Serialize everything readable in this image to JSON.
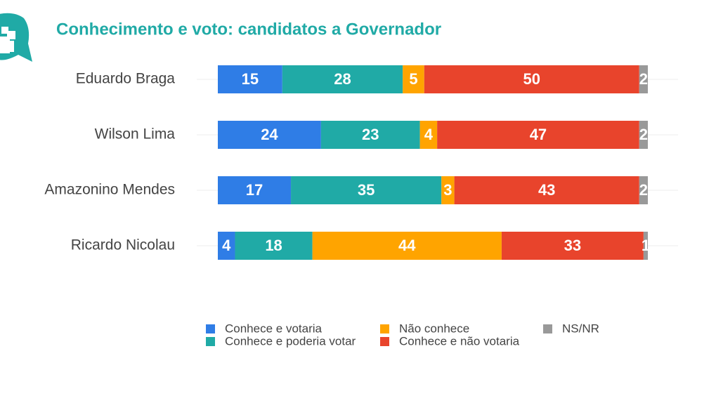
{
  "chart_data": {
    "type": "stacked-bar-horizontal",
    "title": "Conhecimento e voto: candidatos a Governador",
    "categories": [
      "Eduardo Braga",
      "Wilson Lima",
      "Amazonino Mendes",
      "Ricardo Nicolau"
    ],
    "series": [
      {
        "name": "Conhece e votaria",
        "color": "#2f7de6",
        "values": [
          15,
          24,
          17,
          4
        ]
      },
      {
        "name": "Conhece e poderia votar",
        "color": "#20aaa6",
        "values": [
          28,
          23,
          35,
          18
        ]
      },
      {
        "name": "Não conhece",
        "color": "#ffa400",
        "values": [
          5,
          4,
          3,
          44
        ]
      },
      {
        "name": "Conhece e não votaria",
        "color": "#e8442c",
        "values": [
          50,
          47,
          43,
          33
        ]
      },
      {
        "name": "NS/NR",
        "color": "#999999",
        "values": [
          2,
          2,
          2,
          1
        ]
      }
    ],
    "xlim": [
      0,
      100
    ]
  }
}
